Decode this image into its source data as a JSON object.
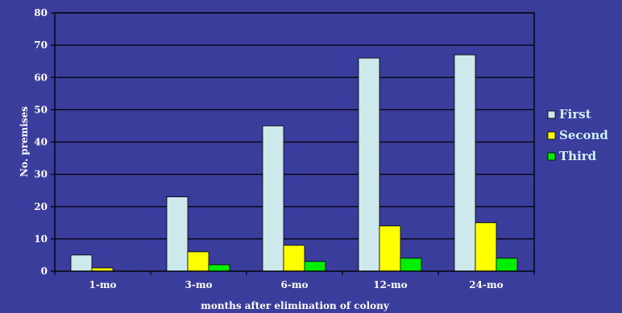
{
  "colors": {
    "background": "#3b3d9c",
    "grid": "#000000",
    "axis": "#000000",
    "first": "#cde9ec",
    "second": "#ffff00",
    "third": "#00ee00"
  },
  "chart_data": {
    "type": "bar",
    "categories": [
      "1-mo",
      "3-mo",
      "6-mo",
      "12-mo",
      "24-mo"
    ],
    "series": [
      {
        "name": "First",
        "values": [
          5,
          23,
          45,
          66,
          67
        ]
      },
      {
        "name": "Second",
        "values": [
          1,
          6,
          8,
          14,
          15
        ]
      },
      {
        "name": "Third",
        "values": [
          0,
          2,
          3,
          4,
          4
        ]
      }
    ],
    "xlabel": "months after elimination of colony",
    "ylabel": "No. premises",
    "ylim": [
      0,
      80
    ],
    "yticks": [
      0,
      10,
      20,
      30,
      40,
      50,
      60,
      70,
      80
    ],
    "grid": true,
    "legend": "right"
  }
}
